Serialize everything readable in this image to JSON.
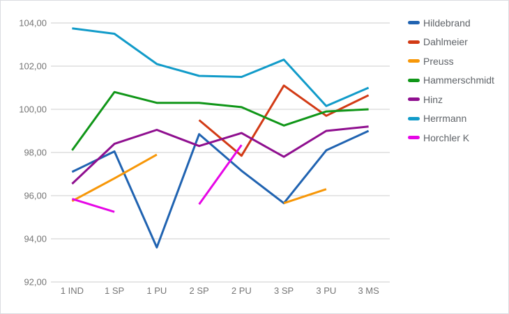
{
  "chart": {
    "background_color": "#ffffff",
    "gridline_color": "#cccccc",
    "tick_label_color": "#757575",
    "legend_text_color": "#5f6368"
  },
  "chart_data": {
    "type": "line",
    "title": "",
    "xlabel": "",
    "ylabel": "",
    "categories": [
      "1 IND",
      "1 SP",
      "1 PU",
      "2 SP",
      "2 PU",
      "3 SP",
      "3 PU",
      "3 MS"
    ],
    "series": [
      {
        "name": "Hildebrand",
        "color": "#2063b1",
        "values": [
          97.1,
          98.05,
          93.6,
          98.85,
          97.15,
          95.65,
          98.1,
          99.0
        ]
      },
      {
        "name": "Dahlmeier",
        "color": "#d23a15",
        "values": [
          null,
          null,
          null,
          99.5,
          97.85,
          101.1,
          99.7,
          100.65
        ]
      },
      {
        "name": "Preuss",
        "color": "#f79708",
        "values": [
          95.75,
          96.8,
          97.9,
          null,
          null,
          95.65,
          96.3,
          null
        ]
      },
      {
        "name": "Hammerschmidt",
        "color": "#109618",
        "values": [
          98.1,
          100.8,
          100.3,
          100.3,
          100.1,
          99.25,
          99.9,
          100.0
        ]
      },
      {
        "name": "Hinz",
        "color": "#8f0f8f",
        "values": [
          96.55,
          98.4,
          99.05,
          98.3,
          98.9,
          97.8,
          99.0,
          99.2
        ]
      },
      {
        "name": "Herrmann",
        "color": "#119bc9",
        "values": [
          103.75,
          103.5,
          102.1,
          101.55,
          101.5,
          102.3,
          100.15,
          101.0
        ]
      },
      {
        "name": "Horchler K",
        "color": "#e606e6",
        "values": [
          95.85,
          95.25,
          null,
          95.6,
          98.35,
          null,
          null,
          null
        ]
      }
    ],
    "ylim": [
      92,
      104
    ],
    "y_tick_step": 2,
    "y_tick_labels": [
      "92,00",
      "94,00",
      "96,00",
      "98,00",
      "100,00",
      "102,00",
      "104,00"
    ],
    "grid": true,
    "legend_position": "right"
  }
}
